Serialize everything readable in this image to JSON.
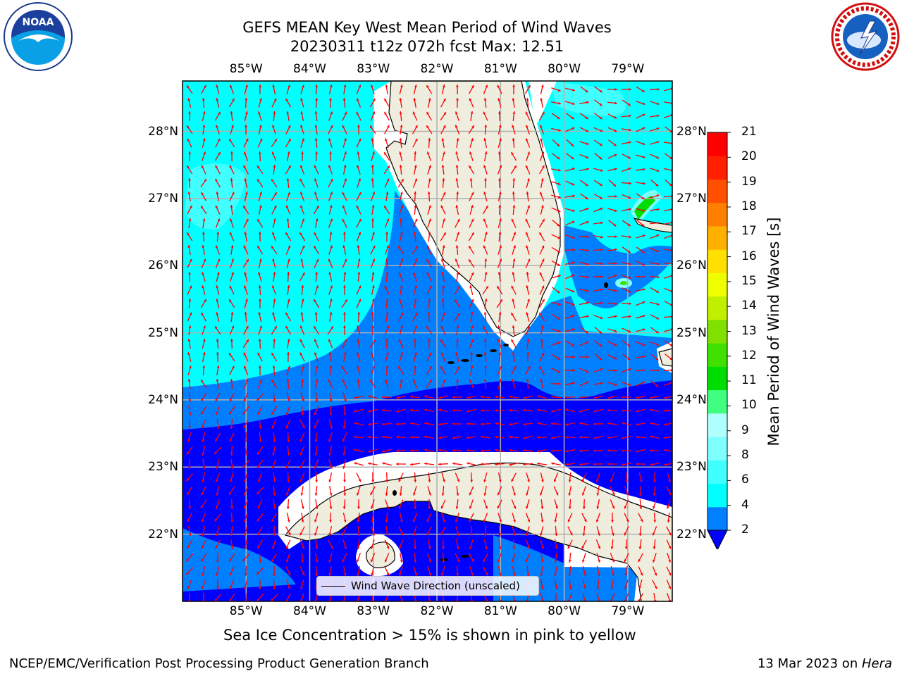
{
  "title": {
    "line1": "GEFS MEAN Key West Mean Period of Wind Waves",
    "line2": "20230311 t12z 072h fcst   Max: 12.51"
  },
  "logos": {
    "left": {
      "icon": "noaa-logo",
      "text": "NOAA"
    },
    "right": {
      "icon": "nws-logo",
      "text": "NATIONAL WEATHER SERVICE"
    }
  },
  "map": {
    "lon_labels": [
      "85°W",
      "84°W",
      "83°W",
      "82°W",
      "81°W",
      "80°W",
      "79°W"
    ],
    "lat_labels": [
      "28°N",
      "27°N",
      "26°N",
      "25°N",
      "24°N",
      "23°N",
      "22°N"
    ],
    "lon_values": [
      -85,
      -84,
      -83,
      -82,
      -81,
      -80,
      -79
    ],
    "lat_values": [
      28,
      27,
      26,
      25,
      24,
      23,
      22
    ],
    "lon_range": [
      -86,
      -78.3
    ],
    "lat_range": [
      21,
      28.75
    ],
    "grid": true,
    "colors": {
      "land": "#efedde",
      "coast": "#000000",
      "grid": "#b0b0b0",
      "arrow": "#ff0000"
    }
  },
  "colorbar": {
    "label": "Mean Period of Wind Waves [s]",
    "ticks": [
      "21",
      "20",
      "19",
      "18",
      "17",
      "16",
      "15",
      "14",
      "13",
      "12",
      "11",
      "10",
      "9",
      "8",
      "6",
      "4",
      "2"
    ],
    "colors": [
      "#0000ff",
      "#0080ff",
      "#00ffff",
      "#40ffff",
      "#80ffff",
      "#b0ffff",
      "#40ff80",
      "#00dd00",
      "#40e000",
      "#80e000",
      "#c0f000",
      "#f0ff00",
      "#ffe000",
      "#ffb000",
      "#ff8000",
      "#ff5000",
      "#ff2000",
      "#ff0000"
    ]
  },
  "legend": {
    "label": "Wind Wave Direction (unscaled)"
  },
  "subtitle": "Sea Ice Concentration > 15% is shown in pink to yellow",
  "footer": {
    "left": "NCEP/EMC/Verification Post Processing Product Generation Branch",
    "right_date": "13 Mar 2023 on ",
    "right_host": "Hera"
  }
}
